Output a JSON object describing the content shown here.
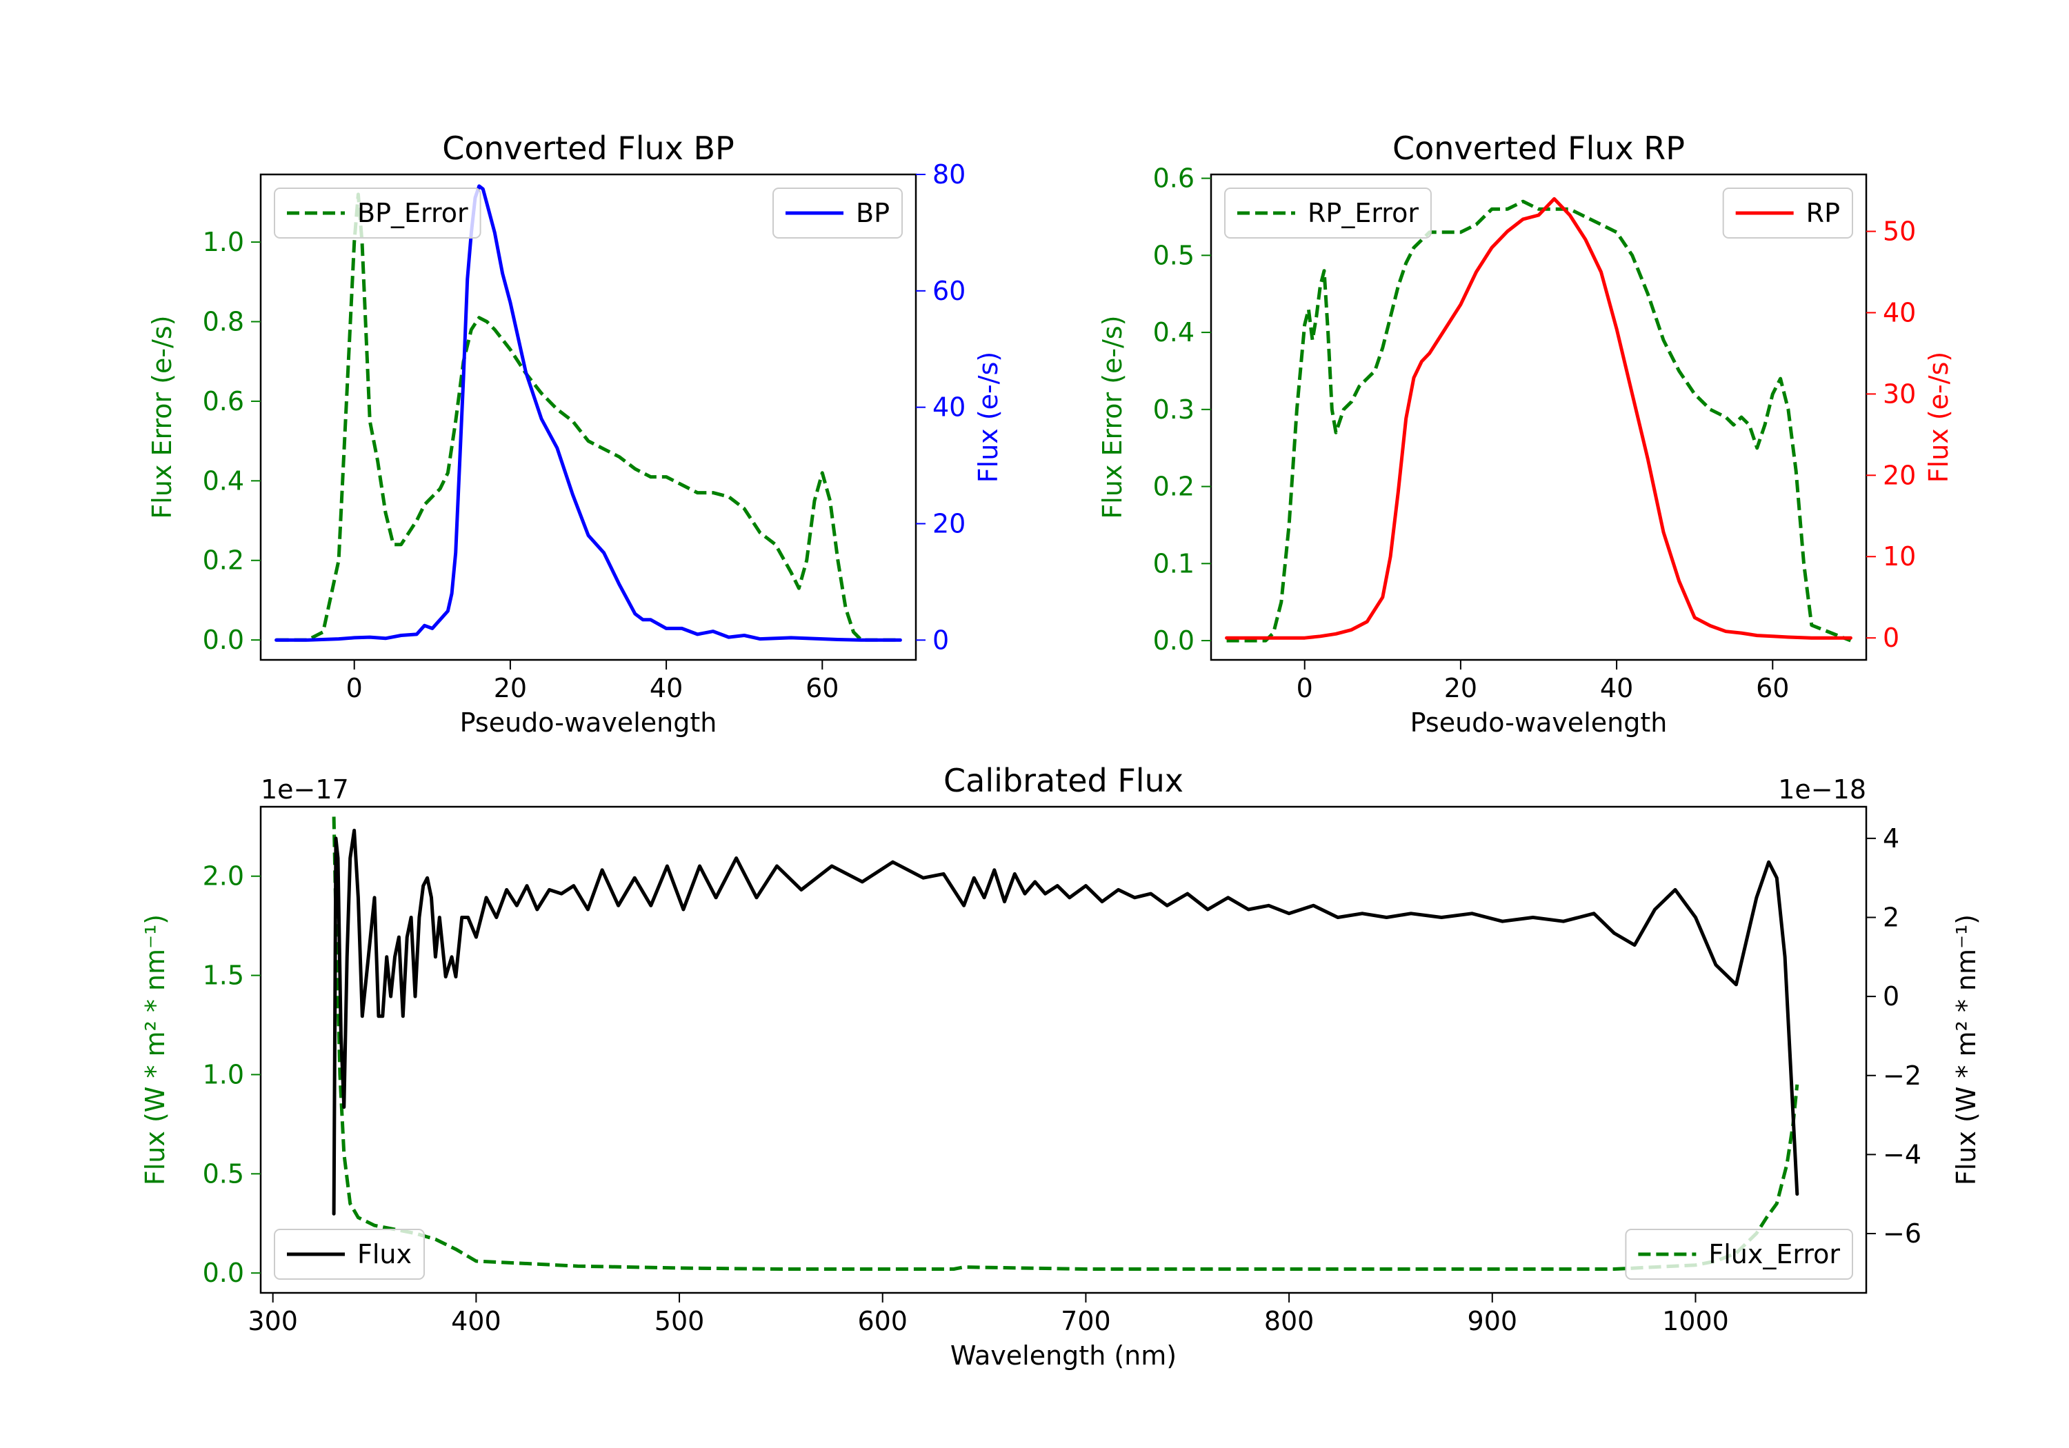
{
  "chart_data": [
    {
      "id": "bp",
      "type": "line",
      "title": "Converted Flux BP",
      "xlabel": "Pseudo-wavelength",
      "ylabel_left": "Flux Error (e-/s)",
      "ylabel_right": "Flux (e-/s)",
      "xlim": [
        -12,
        72
      ],
      "ylim_left": [
        -0.05,
        1.17
      ],
      "ylim_right": [
        -3.4,
        80
      ],
      "xticks": [
        0,
        20,
        40,
        60
      ],
      "yticks_left": [
        0.0,
        0.2,
        0.4,
        0.6,
        0.8,
        1.0
      ],
      "yticks_left_labels": [
        "0.0",
        "0.2",
        "0.4",
        "0.6",
        "0.8",
        "1.0"
      ],
      "yticks_right": [
        0,
        20,
        40,
        60,
        80
      ],
      "yticks_right_labels": [
        "0",
        "20",
        "40",
        "60",
        "80"
      ],
      "colors": {
        "left_axis": "#008000",
        "right_axis": "#0000ff"
      },
      "legend_left": {
        "label": "BP_Error",
        "position": "upper-left"
      },
      "legend_right": {
        "label": "BP",
        "position": "upper-right"
      },
      "series": [
        {
          "name": "BP_Error",
          "axis": "left",
          "color": "#008000",
          "style": "dashed",
          "x": [
            -10,
            -6,
            -4,
            -2,
            -1,
            0,
            0.5,
            1,
            2,
            3,
            4,
            5,
            6,
            7,
            8,
            9,
            10,
            11,
            12,
            13,
            14,
            15,
            16,
            17,
            18,
            20,
            22,
            24,
            26,
            28,
            30,
            32,
            34,
            36,
            38,
            40,
            42,
            44,
            46,
            48,
            50,
            52,
            54,
            56,
            57,
            58,
            59,
            60,
            61,
            62,
            63,
            64,
            65,
            70
          ],
          "y": [
            0.0,
            0.0,
            0.02,
            0.2,
            0.6,
            1.0,
            1.12,
            1.0,
            0.55,
            0.45,
            0.32,
            0.24,
            0.24,
            0.27,
            0.3,
            0.34,
            0.36,
            0.38,
            0.42,
            0.55,
            0.7,
            0.78,
            0.81,
            0.8,
            0.78,
            0.73,
            0.67,
            0.62,
            0.58,
            0.55,
            0.5,
            0.48,
            0.46,
            0.43,
            0.41,
            0.41,
            0.39,
            0.37,
            0.37,
            0.36,
            0.33,
            0.27,
            0.24,
            0.17,
            0.13,
            0.2,
            0.35,
            0.42,
            0.35,
            0.2,
            0.08,
            0.02,
            0.0,
            0.0
          ]
        },
        {
          "name": "BP",
          "axis": "right",
          "color": "#0000ff",
          "style": "solid",
          "x": [
            -10,
            -6,
            -2,
            0,
            2,
            4,
            6,
            8,
            9,
            10,
            11,
            12,
            12.5,
            13,
            14,
            14.5,
            15,
            15.5,
            16,
            16.5,
            17,
            18,
            19,
            20,
            22,
            24,
            26,
            28,
            30,
            32,
            34,
            36,
            37,
            38,
            40,
            42,
            44,
            46,
            48,
            50,
            52,
            54,
            56,
            58,
            60,
            62,
            65,
            70
          ],
          "y": [
            0.0,
            0.0,
            0.2,
            0.4,
            0.5,
            0.3,
            0.8,
            1.0,
            2.5,
            2.0,
            3.5,
            5.0,
            8.0,
            15.0,
            45.0,
            62.0,
            70.0,
            76.0,
            78.0,
            77.5,
            75.0,
            70.0,
            63.0,
            58.0,
            46.0,
            38.0,
            33.0,
            25.0,
            18.0,
            15.0,
            9.5,
            4.5,
            3.5,
            3.5,
            2.0,
            2.0,
            1.0,
            1.5,
            0.5,
            0.8,
            0.2,
            0.3,
            0.4,
            0.3,
            0.2,
            0.1,
            0.0,
            0.0
          ]
        }
      ]
    },
    {
      "id": "rp",
      "type": "line",
      "title": "Converted Flux RP",
      "xlabel": "Pseudo-wavelength",
      "ylabel_left": "Flux Error (e-/s)",
      "ylabel_right": "Flux (e-/s)",
      "xlim": [
        -12,
        72
      ],
      "ylim_left": [
        -0.025,
        0.605
      ],
      "ylim_right": [
        -2.7,
        57
      ],
      "xticks": [
        0,
        20,
        40,
        60
      ],
      "yticks_left": [
        0.0,
        0.1,
        0.2,
        0.3,
        0.4,
        0.5,
        0.6
      ],
      "yticks_left_labels": [
        "0.0",
        "0.1",
        "0.2",
        "0.3",
        "0.4",
        "0.5",
        "0.6"
      ],
      "yticks_right": [
        0,
        10,
        20,
        30,
        40,
        50
      ],
      "yticks_right_labels": [
        "0",
        "10",
        "20",
        "30",
        "40",
        "50"
      ],
      "colors": {
        "left_axis": "#008000",
        "right_axis": "#ff0000"
      },
      "legend_left": {
        "label": "RP_Error",
        "position": "upper-left"
      },
      "legend_right": {
        "label": "RP",
        "position": "upper-right"
      },
      "series": [
        {
          "name": "RP_Error",
          "axis": "left",
          "color": "#008000",
          "style": "dashed",
          "x": [
            -10,
            -5,
            -4,
            -3,
            -2,
            -1,
            0,
            0.5,
            1,
            1.5,
            2,
            2.5,
            3,
            3.5,
            4,
            5,
            6,
            7,
            8,
            9,
            10,
            11,
            12,
            13,
            14,
            15,
            16,
            18,
            20,
            22,
            24,
            26,
            28,
            30,
            32,
            34,
            36,
            38,
            40,
            42,
            44,
            46,
            48,
            50,
            52,
            54,
            55,
            56,
            57,
            58,
            59,
            60,
            61,
            62,
            63,
            64,
            65,
            70
          ],
          "y": [
            0.0,
            0.0,
            0.01,
            0.05,
            0.15,
            0.3,
            0.41,
            0.43,
            0.39,
            0.42,
            0.46,
            0.48,
            0.4,
            0.3,
            0.27,
            0.3,
            0.31,
            0.33,
            0.34,
            0.35,
            0.38,
            0.42,
            0.46,
            0.49,
            0.51,
            0.52,
            0.53,
            0.53,
            0.53,
            0.54,
            0.56,
            0.56,
            0.57,
            0.56,
            0.56,
            0.56,
            0.55,
            0.54,
            0.53,
            0.5,
            0.45,
            0.39,
            0.35,
            0.32,
            0.3,
            0.29,
            0.28,
            0.29,
            0.28,
            0.25,
            0.28,
            0.32,
            0.34,
            0.3,
            0.22,
            0.1,
            0.02,
            0.0
          ]
        },
        {
          "name": "RP",
          "axis": "right",
          "color": "#ff0000",
          "style": "solid",
          "x": [
            -10,
            -5,
            0,
            2,
            4,
            6,
            8,
            10,
            11,
            12,
            13,
            14,
            15,
            16,
            18,
            20,
            22,
            24,
            26,
            28,
            30,
            31,
            32,
            33,
            34,
            36,
            38,
            40,
            42,
            44,
            46,
            48,
            50,
            52,
            54,
            56,
            58,
            60,
            62,
            65,
            70
          ],
          "y": [
            0.0,
            0.0,
            0.0,
            0.2,
            0.5,
            1.0,
            2.0,
            5.0,
            10.0,
            18.0,
            27.0,
            32.0,
            34.0,
            35.0,
            38.0,
            41.0,
            45.0,
            48.0,
            50.0,
            51.5,
            52.0,
            53.0,
            54.0,
            53.0,
            52.0,
            49.0,
            45.0,
            38.0,
            30.0,
            22.0,
            13.0,
            7.0,
            2.5,
            1.5,
            0.8,
            0.6,
            0.3,
            0.2,
            0.1,
            0.0,
            0.0
          ]
        }
      ]
    },
    {
      "id": "cal",
      "type": "line",
      "title": "Calibrated Flux",
      "xlabel": "Wavelength (nm)",
      "ylabel_left": "Flux (W * m² * nm⁻¹)",
      "ylabel_right": "Flux (W * m² * nm⁻¹)",
      "offset_left": "1e−17",
      "offset_right": "1e−18",
      "xlim": [
        294,
        1084
      ],
      "ylim_left": [
        -0.1,
        2.35
      ],
      "ylim_right": [
        -7.5,
        4.8
      ],
      "xticks": [
        300,
        400,
        500,
        600,
        700,
        800,
        900,
        1000
      ],
      "yticks_left": [
        0.0,
        0.5,
        1.0,
        1.5,
        2.0
      ],
      "yticks_left_labels": [
        "0.0",
        "0.5",
        "1.0",
        "1.5",
        "2.0"
      ],
      "yticks_right": [
        -6,
        -4,
        -2,
        0,
        2,
        4
      ],
      "yticks_right_labels": [
        "−6",
        "−4",
        "−2",
        "0",
        "2",
        "4"
      ],
      "colors": {
        "left_axis": "#008000",
        "right_axis": "#000000"
      },
      "legend_left": {
        "label": "Flux",
        "position": "lower-left"
      },
      "legend_right": {
        "label": "Flux_Error",
        "position": "lower-right"
      },
      "series": [
        {
          "name": "Flux_Error",
          "axis": "left",
          "color": "#008000",
          "style": "dashed",
          "x": [
            330,
            331,
            333,
            335,
            338,
            342,
            350,
            360,
            370,
            380,
            390,
            400,
            420,
            450,
            500,
            550,
            600,
            635,
            640,
            700,
            800,
            900,
            960,
            980,
            1000,
            1010,
            1020,
            1030,
            1035,
            1040,
            1045,
            1048,
            1050
          ],
          "y": [
            2.3,
            1.8,
            1.0,
            0.6,
            0.35,
            0.28,
            0.24,
            0.22,
            0.2,
            0.17,
            0.12,
            0.06,
            0.05,
            0.035,
            0.025,
            0.02,
            0.02,
            0.02,
            0.03,
            0.02,
            0.02,
            0.02,
            0.02,
            0.03,
            0.04,
            0.06,
            0.1,
            0.2,
            0.28,
            0.35,
            0.55,
            0.75,
            0.95
          ]
        },
        {
          "name": "Flux",
          "axis": "right",
          "color": "#000000",
          "style": "solid",
          "x": [
            330,
            331,
            332,
            333.5,
            335,
            336.5,
            338,
            340,
            342,
            344,
            346,
            348,
            350,
            352,
            354,
            356,
            358,
            360,
            362,
            364,
            366,
            368,
            370,
            372,
            374,
            376,
            378,
            380,
            382,
            385,
            388,
            390,
            393,
            396,
            400,
            405,
            410,
            415,
            420,
            425,
            430,
            436,
            442,
            448,
            455,
            462,
            470,
            478,
            486,
            494,
            502,
            510,
            518,
            528,
            538,
            548,
            560,
            575,
            590,
            605,
            620,
            630,
            640,
            645,
            650,
            655,
            660,
            665,
            670,
            675,
            680,
            686,
            692,
            700,
            708,
            716,
            724,
            732,
            740,
            750,
            760,
            770,
            780,
            790,
            800,
            812,
            824,
            836,
            848,
            860,
            875,
            890,
            905,
            920,
            935,
            950,
            960,
            970,
            980,
            990,
            1000,
            1010,
            1020,
            1030,
            1036,
            1040,
            1044,
            1047,
            1050
          ],
          "y": [
            -5.5,
            4.0,
            3.5,
            -1.0,
            -2.8,
            1.0,
            3.5,
            4.2,
            2.5,
            -0.5,
            0.5,
            1.5,
            2.5,
            -0.5,
            -0.5,
            1.0,
            0.0,
            1.0,
            1.5,
            -0.5,
            1.5,
            2.0,
            0.0,
            2.0,
            2.8,
            3.0,
            2.5,
            1.0,
            2.0,
            0.5,
            1.0,
            0.5,
            2.0,
            2.0,
            1.5,
            2.5,
            2.0,
            2.7,
            2.3,
            2.8,
            2.2,
            2.7,
            2.6,
            2.8,
            2.2,
            3.2,
            2.3,
            3.0,
            2.3,
            3.3,
            2.2,
            3.3,
            2.5,
            3.5,
            2.5,
            3.3,
            2.7,
            3.3,
            2.9,
            3.4,
            3.0,
            3.1,
            2.3,
            3.0,
            2.5,
            3.2,
            2.4,
            3.1,
            2.6,
            2.9,
            2.6,
            2.8,
            2.5,
            2.8,
            2.4,
            2.7,
            2.5,
            2.6,
            2.3,
            2.6,
            2.2,
            2.5,
            2.2,
            2.3,
            2.1,
            2.3,
            2.0,
            2.1,
            2.0,
            2.1,
            2.0,
            2.1,
            1.9,
            2.0,
            1.9,
            2.1,
            1.6,
            1.3,
            2.2,
            2.7,
            2.0,
            0.8,
            0.3,
            2.5,
            3.4,
            3.0,
            1.0,
            -2.0,
            -5.0
          ]
        }
      ]
    }
  ]
}
